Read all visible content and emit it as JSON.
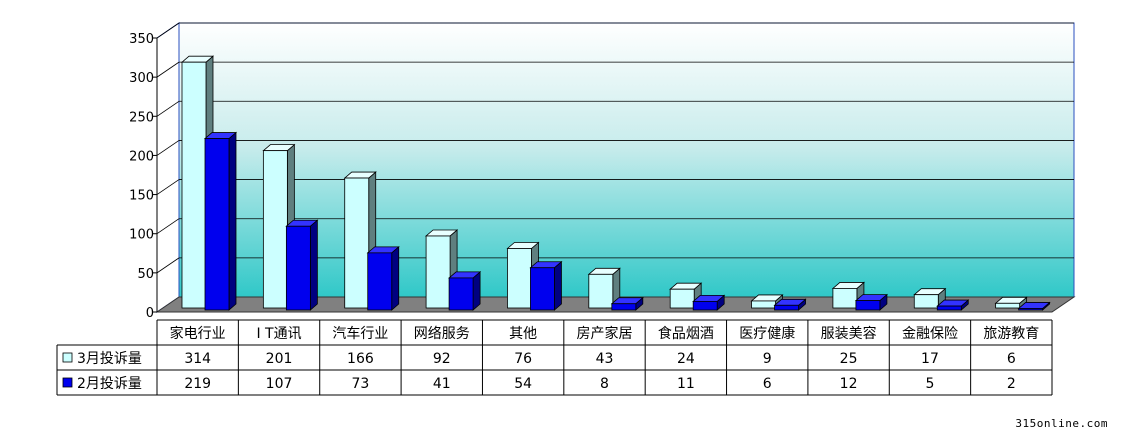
{
  "chart_data": {
    "type": "bar",
    "categories": [
      "家电行业",
      "I T通讯",
      "汽车行业",
      "网络服务",
      "其他",
      "房产家居",
      "食品烟酒",
      "医疗健康",
      "服装美容",
      "金融保险",
      "旅游教育"
    ],
    "series": [
      {
        "name": "3月投诉量",
        "values": [
          314,
          201,
          166,
          92,
          76,
          43,
          24,
          9,
          25,
          17,
          6
        ],
        "color": "#ccffff",
        "side_color": "#5f7f7f"
      },
      {
        "name": "2月投诉量",
        "values": [
          219,
          107,
          73,
          41,
          54,
          8,
          11,
          6,
          12,
          5,
          2
        ],
        "color": "#0000ee",
        "side_color": "#000080"
      }
    ],
    "ylim": [
      0,
      350
    ],
    "yticks": [
      "0",
      "50",
      "100",
      "150",
      "200",
      "250",
      "300",
      "350"
    ],
    "legend_placement": "data-table",
    "grid": true
  },
  "watermark": "315online.com"
}
